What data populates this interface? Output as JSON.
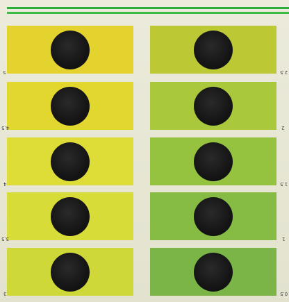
{
  "scale": {
    "left_column": [
      {
        "label": "5",
        "color": "#e4d22f"
      },
      {
        "label": "4.5",
        "color": "#e2d72e"
      },
      {
        "label": "4",
        "color": "#dedd37"
      },
      {
        "label": "3.5",
        "color": "#d7dc38"
      },
      {
        "label": "3",
        "color": "#ced839"
      }
    ],
    "right_column": [
      {
        "label": "2.5",
        "color": "#bcc935"
      },
      {
        "label": "2",
        "color": "#a9c83b"
      },
      {
        "label": "1.5",
        "color": "#95c23f"
      },
      {
        "label": "1",
        "color": "#86bb44"
      },
      {
        "label": "0.5",
        "color": "#7cb547"
      }
    ]
  },
  "colors": {
    "stripe": "#2fae3c",
    "hole": "#151515",
    "board": "#e8e8d8"
  }
}
